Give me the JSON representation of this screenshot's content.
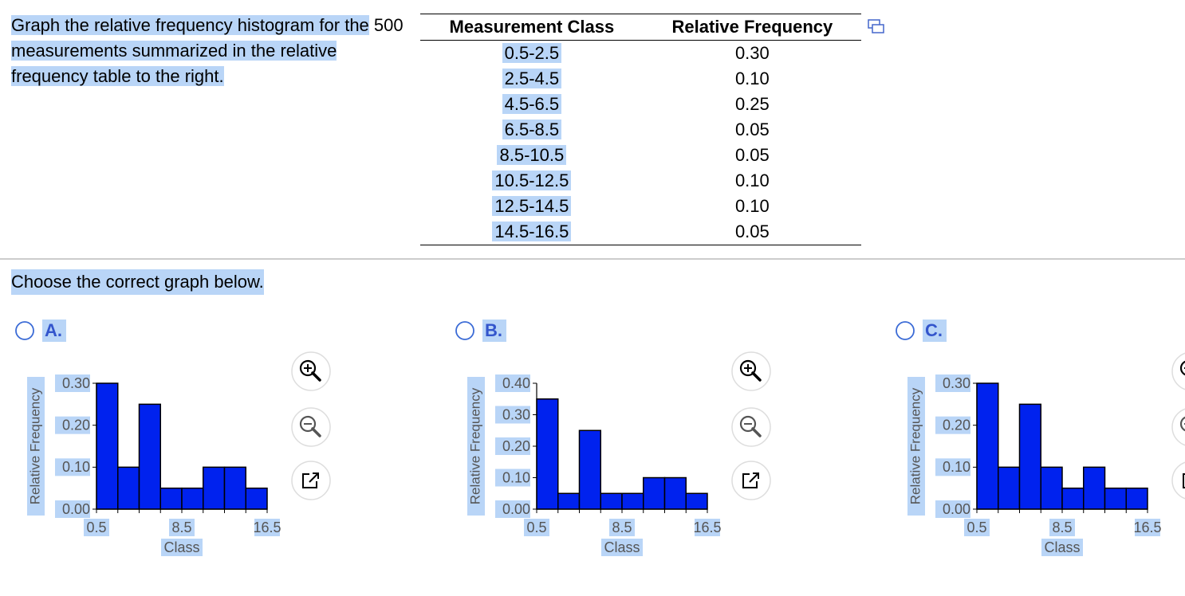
{
  "question": {
    "before": "Graph the relative frequency histogram for the",
    "number": "500",
    "after": "measurements summarized in the relative frequency table to the right."
  },
  "table": {
    "header": [
      "Measurement Class",
      "Relative Frequency"
    ],
    "rows": [
      [
        "0.5-2.5",
        "0.30"
      ],
      [
        "2.5-4.5",
        "0.10"
      ],
      [
        "4.5-6.5",
        "0.25"
      ],
      [
        "6.5-8.5",
        "0.05"
      ],
      [
        "8.5-10.5",
        "0.05"
      ],
      [
        "10.5-12.5",
        "0.10"
      ],
      [
        "12.5-14.5",
        "0.10"
      ],
      [
        "14.5-16.5",
        "0.05"
      ]
    ]
  },
  "prompt": "Choose the correct graph below.",
  "options": [
    {
      "label": "A.",
      "chart": {
        "type": "histogram",
        "xlabel": "Class",
        "ylabel": "Relative Frequency",
        "color": "#0022ee",
        "bins": [
          0.5,
          2.5,
          4.5,
          6.5,
          8.5,
          10.5,
          12.5,
          14.5,
          16.5
        ],
        "values": [
          0.3,
          0.1,
          0.25,
          0.05,
          0.05,
          0.1,
          0.1,
          0.05
        ],
        "xlim": [
          0.5,
          16.5
        ],
        "xticks": [
          0.5,
          8.5,
          16.5
        ],
        "ylim": [
          0,
          0.3
        ],
        "yticks": [
          {
            "value": 0,
            "label": "0.00"
          },
          {
            "value": 0.1,
            "label": "0.10"
          },
          {
            "value": 0.2,
            "label": "0.20"
          },
          {
            "value": 0.3,
            "label": "0.30"
          }
        ]
      }
    },
    {
      "label": "B.",
      "chart": {
        "type": "histogram",
        "xlabel": "Class",
        "ylabel": "Relative Frequency",
        "color": "#0022ee",
        "bins": [
          0.5,
          2.5,
          4.5,
          6.5,
          8.5,
          10.5,
          12.5,
          14.5,
          16.5
        ],
        "values": [
          0.35,
          0.05,
          0.25,
          0.05,
          0.05,
          0.1,
          0.1,
          0.05
        ],
        "xlim": [
          0.5,
          16.5
        ],
        "xticks": [
          0.5,
          8.5,
          16.5
        ],
        "ylim": [
          0,
          0.4
        ],
        "yticks": [
          {
            "value": 0,
            "label": "0.00"
          },
          {
            "value": 0.1,
            "label": "0.10"
          },
          {
            "value": 0.2,
            "label": "0.20"
          },
          {
            "value": 0.3,
            "label": "0.30"
          },
          {
            "value": 0.4,
            "label": "0.40"
          }
        ]
      }
    },
    {
      "label": "C.",
      "chart": {
        "type": "histogram",
        "xlabel": "Class",
        "ylabel": "Relative Frequency",
        "color": "#0022ee",
        "bins": [
          0.5,
          2.5,
          4.5,
          6.5,
          8.5,
          10.5,
          12.5,
          14.5,
          16.5
        ],
        "values": [
          0.3,
          0.1,
          0.25,
          0.1,
          0.05,
          0.1,
          0.05,
          0.05
        ],
        "xlim": [
          0.5,
          16.5
        ],
        "xticks": [
          0.5,
          8.5,
          16.5
        ],
        "ylim": [
          0,
          0.3
        ],
        "yticks": [
          {
            "value": 0,
            "label": "0.00"
          },
          {
            "value": 0.1,
            "label": "0.10"
          },
          {
            "value": 0.2,
            "label": "0.20"
          },
          {
            "value": 0.3,
            "label": "0.30"
          }
        ]
      }
    }
  ]
}
